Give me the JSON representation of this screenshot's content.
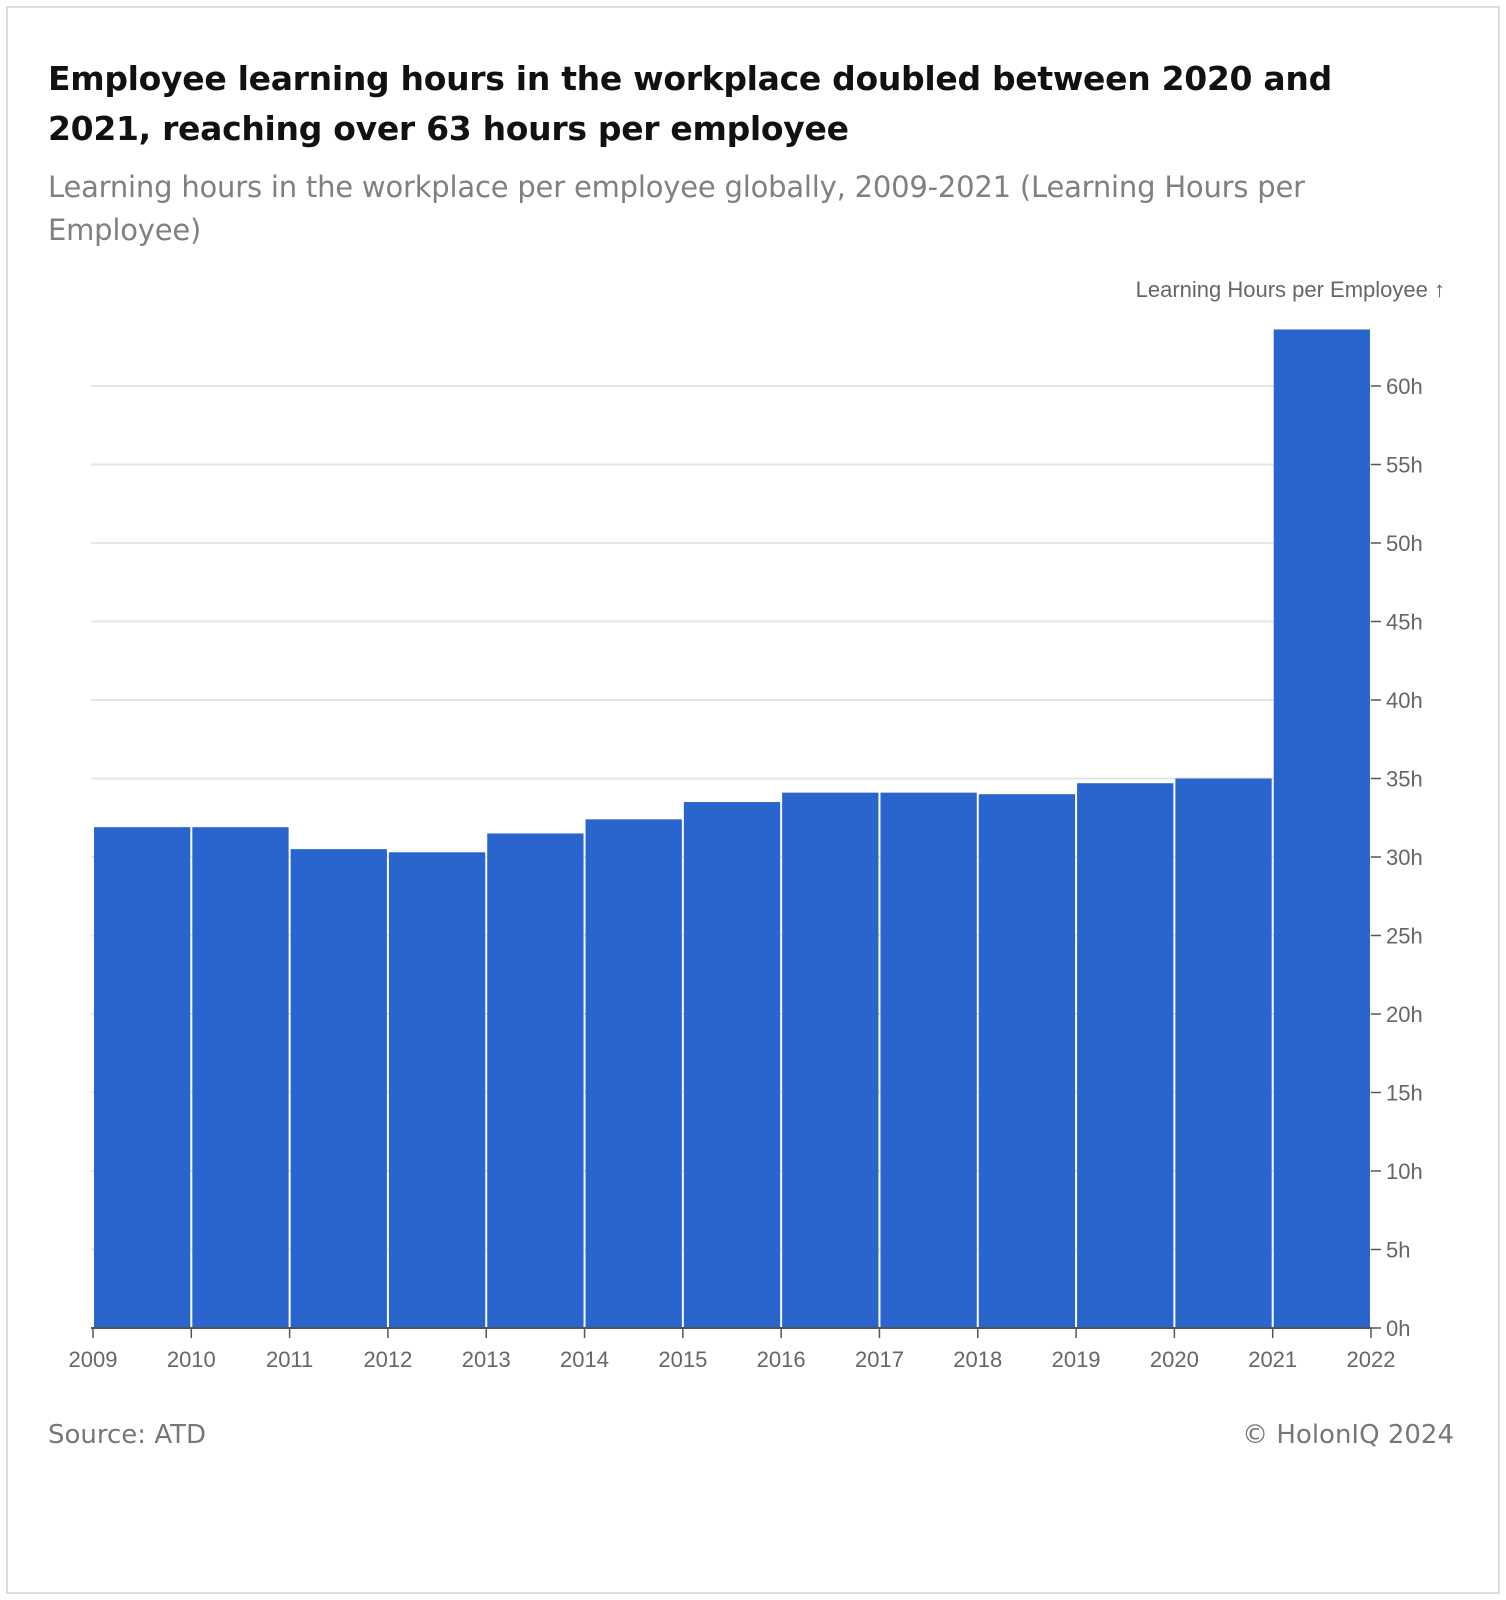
{
  "header": {
    "title": "Employee learning hours in the workplace doubled between 2020 and 2021, reaching over 63 hours per employee",
    "subtitle": "Learning hours in the workplace per employee globally, 2009-2021 (Learning Hours per Employee)"
  },
  "footer": {
    "source": "Source: ATD",
    "credit": "© HolonIQ 2024"
  },
  "colors": {
    "bar": "#2965cc",
    "grid": "#e6e6e6",
    "axis": "#555555",
    "tick_text": "#666666"
  },
  "chart_data": {
    "type": "bar",
    "ylabel": "Learning Hours per Employee ↑",
    "ylim": [
      0,
      63.6
    ],
    "y_ticks": [
      0,
      5,
      10,
      15,
      20,
      25,
      30,
      35,
      40,
      45,
      50,
      55,
      60
    ],
    "y_tick_suffix": "h",
    "x_ticks": [
      "2009",
      "2010",
      "2011",
      "2012",
      "2013",
      "2014",
      "2015",
      "2016",
      "2017",
      "2018",
      "2019",
      "2020",
      "2021",
      "2022"
    ],
    "bins": [
      {
        "start": 2009,
        "end": 2010,
        "value": 31.9
      },
      {
        "start": 2010,
        "end": 2011,
        "value": 31.9
      },
      {
        "start": 2011,
        "end": 2012,
        "value": 30.5
      },
      {
        "start": 2012,
        "end": 2013,
        "value": 30.3
      },
      {
        "start": 2013,
        "end": 2014,
        "value": 31.5
      },
      {
        "start": 2014,
        "end": 2015,
        "value": 32.4
      },
      {
        "start": 2015,
        "end": 2016,
        "value": 33.5
      },
      {
        "start": 2016,
        "end": 2017,
        "value": 34.1
      },
      {
        "start": 2017,
        "end": 2018,
        "value": 34.1
      },
      {
        "start": 2018,
        "end": 2019,
        "value": 34.0
      },
      {
        "start": 2019,
        "end": 2020,
        "value": 34.7
      },
      {
        "start": 2020,
        "end": 2021,
        "value": 35.0
      },
      {
        "start": 2021,
        "end": 2022,
        "value": 63.6
      }
    ],
    "grid": true,
    "y_axis_position": "right"
  }
}
